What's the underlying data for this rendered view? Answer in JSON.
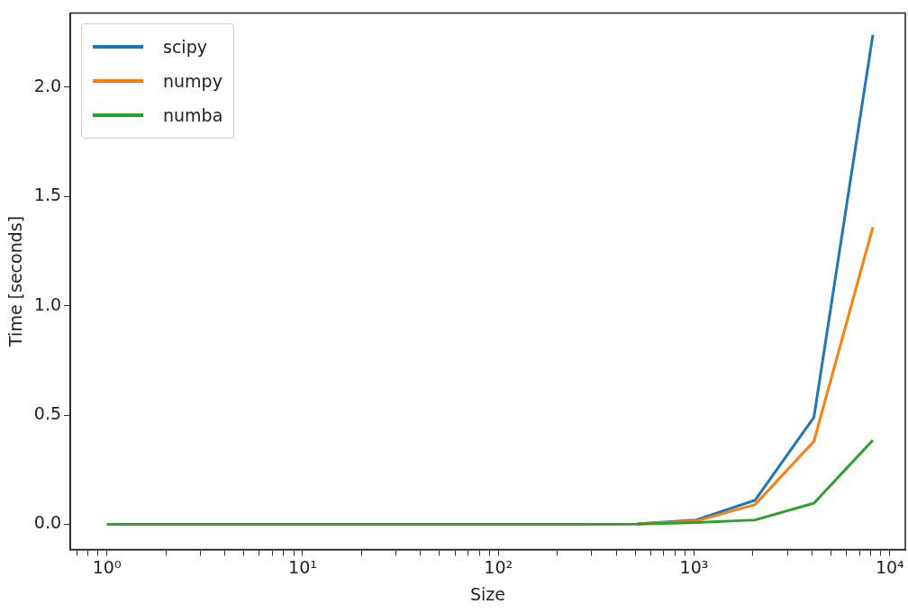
{
  "chart_data": {
    "type": "line",
    "xlabel": "Size",
    "ylabel": "Time [seconds]",
    "x": [
      1,
      2,
      4,
      8,
      16,
      32,
      64,
      128,
      256,
      512,
      1024,
      2048,
      4096,
      8192
    ],
    "series": [
      {
        "name": "scipy",
        "color": "#1f77b4",
        "values": [
          null,
          null,
          null,
          null,
          null,
          null,
          null,
          null,
          null,
          0.002,
          0.02,
          0.11,
          0.49,
          2.24
        ]
      },
      {
        "name": "numpy",
        "color": "#ff7f0e",
        "values": [
          null,
          null,
          null,
          null,
          null,
          null,
          null,
          null,
          null,
          0.002,
          0.015,
          0.09,
          0.38,
          1.36
        ]
      },
      {
        "name": "numba",
        "color": "#2ca02c",
        "values": [
          0,
          0,
          0,
          0,
          0,
          0,
          0,
          0,
          0,
          0.001,
          0.008,
          0.02,
          0.097,
          0.385
        ]
      }
    ],
    "log": "x",
    "xlim": [
      0.65,
      12000
    ],
    "ylim": [
      -0.115,
      2.34
    ],
    "xticks": [
      {
        "value": 0.7,
        "label": null
      },
      {
        "value": 0.8,
        "label": null
      },
      {
        "value": 0.9,
        "label": null
      },
      {
        "value": 1,
        "label": "10⁰"
      },
      {
        "value": 2,
        "label": null
      },
      {
        "value": 3,
        "label": null
      },
      {
        "value": 4,
        "label": null
      },
      {
        "value": 5,
        "label": null
      },
      {
        "value": 6,
        "label": null
      },
      {
        "value": 7,
        "label": null
      },
      {
        "value": 8,
        "label": null
      },
      {
        "value": 9,
        "label": null
      },
      {
        "value": 10,
        "label": "10¹"
      },
      {
        "value": 20,
        "label": null
      },
      {
        "value": 30,
        "label": null
      },
      {
        "value": 40,
        "label": null
      },
      {
        "value": 50,
        "label": null
      },
      {
        "value": 60,
        "label": null
      },
      {
        "value": 70,
        "label": null
      },
      {
        "value": 80,
        "label": null
      },
      {
        "value": 90,
        "label": null
      },
      {
        "value": 100,
        "label": "10²"
      },
      {
        "value": 200,
        "label": null
      },
      {
        "value": 300,
        "label": null
      },
      {
        "value": 400,
        "label": null
      },
      {
        "value": 500,
        "label": null
      },
      {
        "value": 600,
        "label": null
      },
      {
        "value": 700,
        "label": null
      },
      {
        "value": 800,
        "label": null
      },
      {
        "value": 900,
        "label": null
      },
      {
        "value": 1000,
        "label": "10³"
      },
      {
        "value": 2000,
        "label": null
      },
      {
        "value": 3000,
        "label": null
      },
      {
        "value": 4000,
        "label": null
      },
      {
        "value": 5000,
        "label": null
      },
      {
        "value": 6000,
        "label": null
      },
      {
        "value": 7000,
        "label": null
      },
      {
        "value": 8000,
        "label": null
      },
      {
        "value": 9000,
        "label": null
      },
      {
        "value": 10000,
        "label": "10⁴"
      }
    ],
    "yticks": [
      {
        "value": 0,
        "label": "0.0"
      },
      {
        "value": 0.5,
        "label": "0.5"
      },
      {
        "value": 1,
        "label": "1.0"
      },
      {
        "value": 1.5,
        "label": "1.5"
      },
      {
        "value": 2,
        "label": "2.0"
      }
    ],
    "legend": "top left",
    "grid": false,
    "marker": "none",
    "line_style": "solid"
  }
}
